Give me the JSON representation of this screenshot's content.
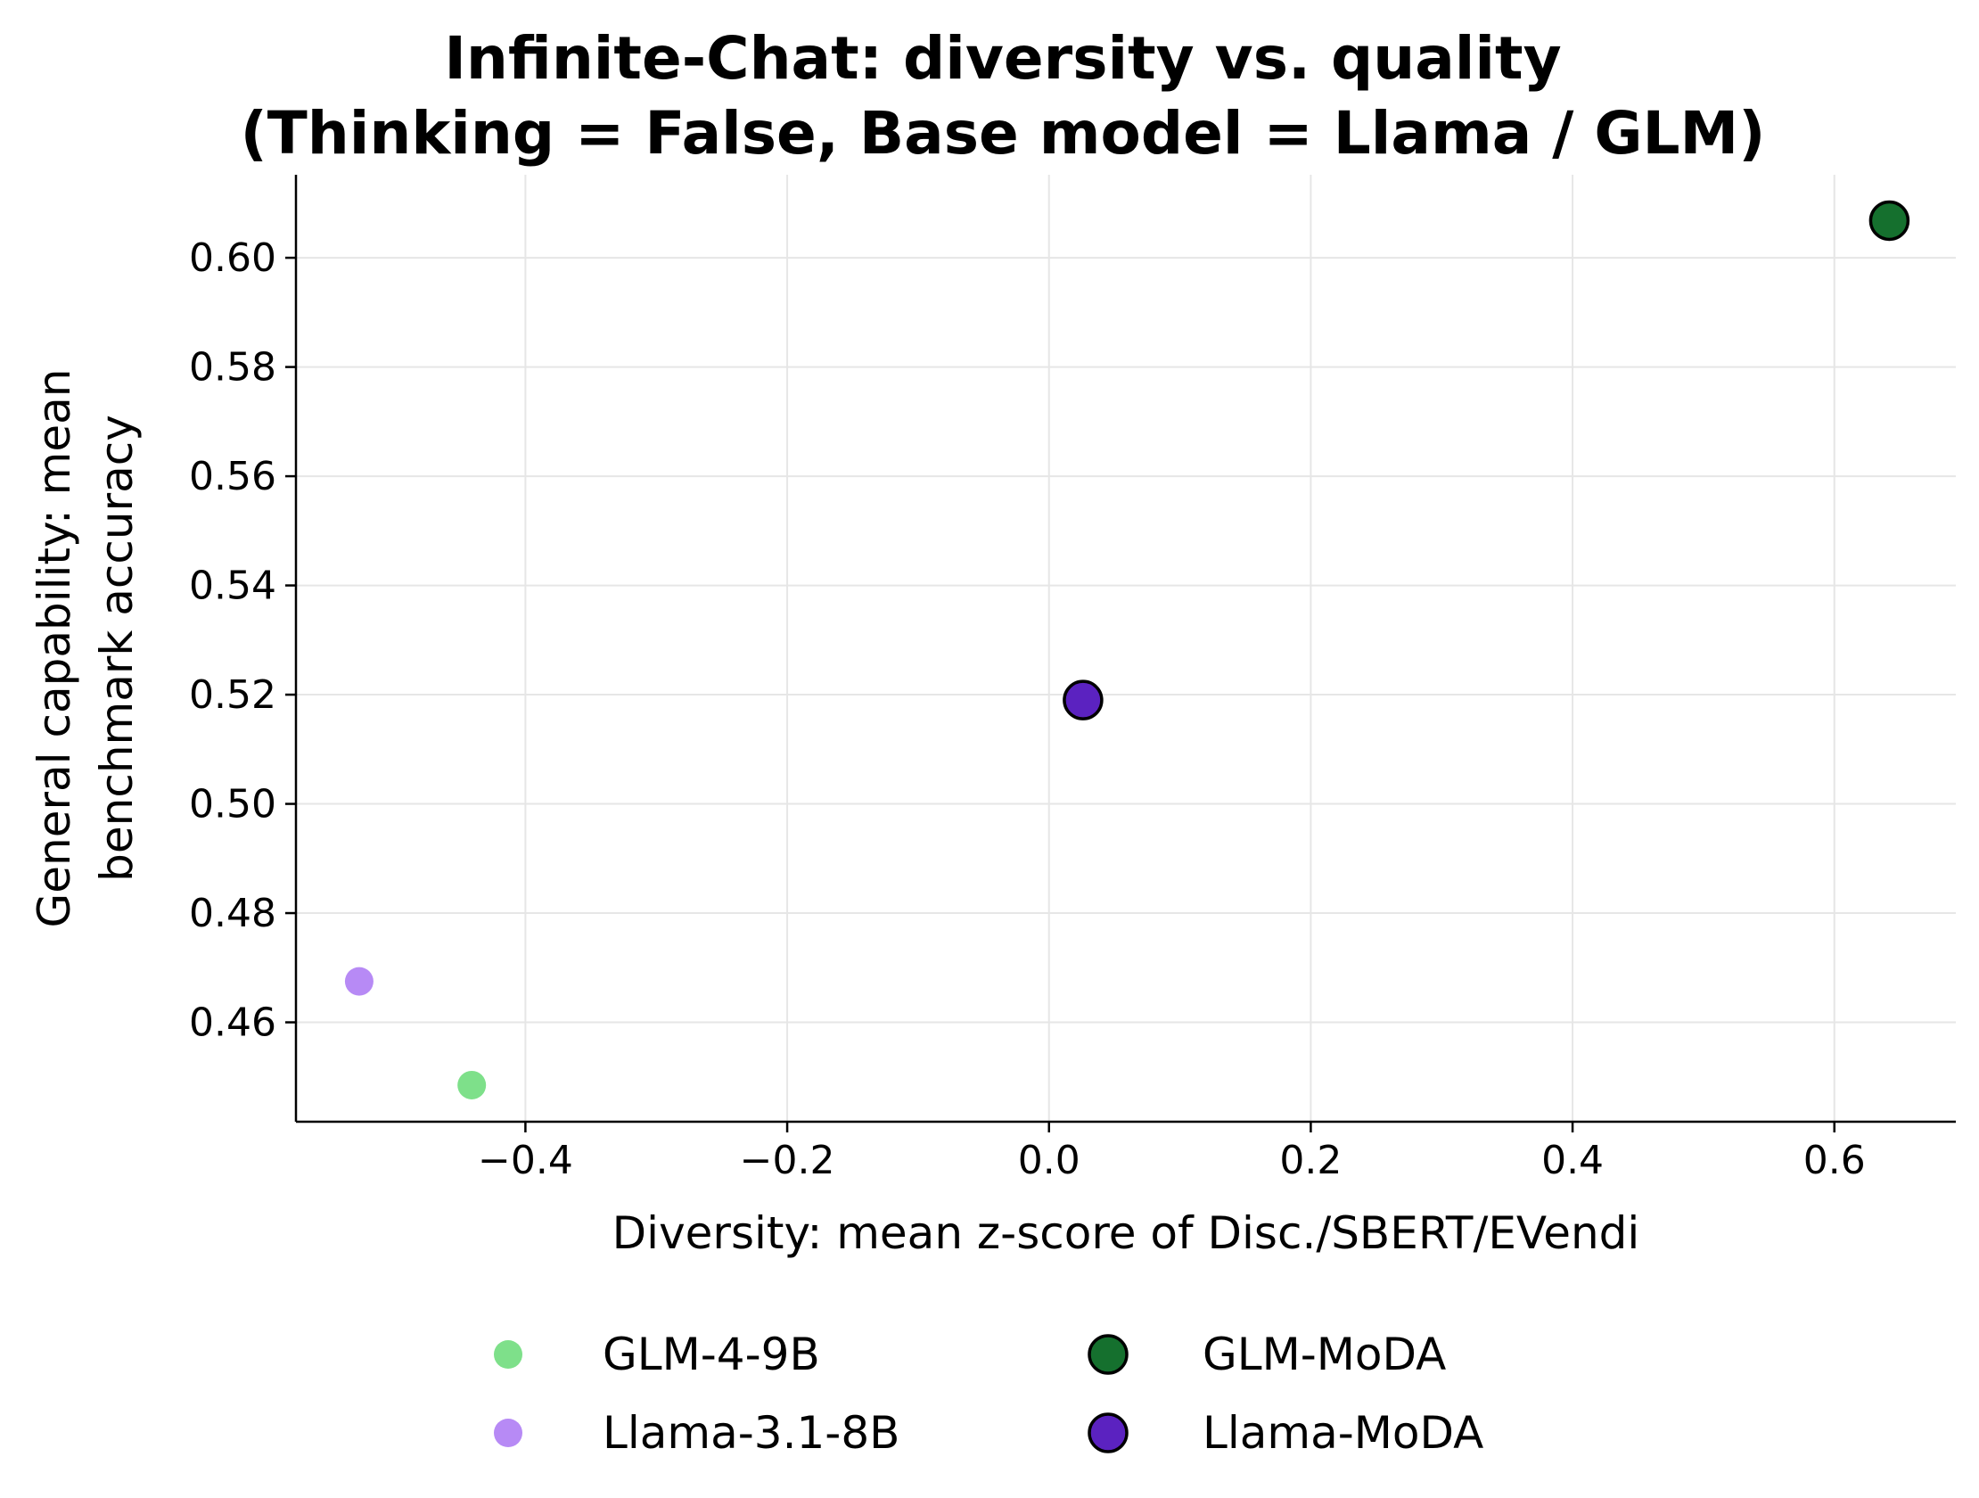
{
  "chart_data": {
    "type": "scatter",
    "title_lines": [
      "Infinite-Chat: diversity vs. quality",
      "(Thinking = False, Base model = Llama / GLM)"
    ],
    "xlabel": "Diversity: mean z-score of Disc./SBERT/EVendi",
    "ylabel_lines": [
      "General capability: mean",
      "benchmark accuracy"
    ],
    "xlim": [
      -0.5753,
      0.6928
    ],
    "ylim": [
      0.4418,
      0.6152
    ],
    "xticks": [
      -0.4,
      -0.2,
      0.0,
      0.2,
      0.4,
      0.6
    ],
    "xtick_labels": [
      "−0.4",
      "−0.2",
      "0.0",
      "0.2",
      "0.4",
      "0.6"
    ],
    "yticks": [
      0.46,
      0.48,
      0.5,
      0.52,
      0.54,
      0.56,
      0.58,
      0.6
    ],
    "ytick_labels": [
      "0.46",
      "0.48",
      "0.50",
      "0.52",
      "0.54",
      "0.56",
      "0.58",
      "0.60"
    ],
    "grid": true,
    "legend_position": "bottom-center",
    "series": [
      {
        "name": "GLM-4-9B",
        "x": -0.441,
        "y": 0.4485,
        "color": "#7ee08a",
        "edge": "none",
        "size": "small"
      },
      {
        "name": "Llama-3.1-8B",
        "x": -0.527,
        "y": 0.4675,
        "color": "#b78af5",
        "edge": "none",
        "size": "small"
      },
      {
        "name": "GLM-MoDA",
        "x": 0.642,
        "y": 0.6068,
        "color": "#15702e",
        "edge": "#000000",
        "size": "large"
      },
      {
        "name": "Llama-MoDA",
        "x": 0.026,
        "y": 0.519,
        "color": "#5b22c0",
        "edge": "#000000",
        "size": "large"
      }
    ]
  }
}
